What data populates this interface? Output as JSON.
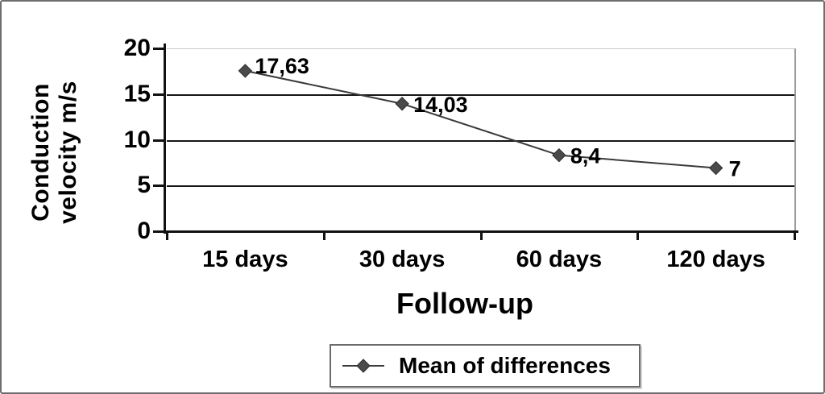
{
  "chart_data": {
    "type": "line",
    "categories": [
      "15 days",
      "30 days",
      "60 days",
      "120 days"
    ],
    "series": [
      {
        "name": "Mean of differences",
        "values": [
          17.63,
          14.03,
          8.4,
          7
        ],
        "point_labels": [
          "17,63",
          "14,03",
          "8,4",
          "7"
        ]
      }
    ],
    "xlabel": "Follow-up",
    "ylabel": "Conduction velocity m/s",
    "ylabel_lines": [
      "Conduction",
      "velocity m/s"
    ],
    "ylim": [
      0,
      20
    ],
    "yticks": [
      20,
      15,
      10,
      5,
      0
    ],
    "ytick_labels": [
      "20",
      "15",
      "10",
      "5",
      "0"
    ],
    "gridline_values": [
      15,
      10,
      5
    ],
    "grid": true,
    "legend_position": "bottom",
    "marker_shape": "diamond"
  },
  "legend": {
    "label": "Mean of differences"
  },
  "colors": {
    "marker": "#4a4a4a",
    "marker_edge": "#2e2e2e",
    "line": "#3a3a3a",
    "gridline": "#161616",
    "axis": "#111111",
    "text": "#000000",
    "plot_bands": [
      "#efefef",
      "#e7e7e7",
      "#dfdfdf",
      "#d3d3d3",
      "#c7c7c7",
      "#bababa",
      "#a9a9a9",
      "#a3a3a3"
    ]
  }
}
